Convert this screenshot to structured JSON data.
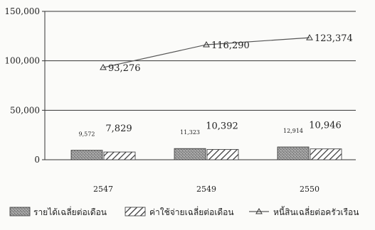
{
  "chart_data": {
    "type": "bar",
    "categories": [
      "2547",
      "2549",
      "2550"
    ],
    "ylim": [
      0,
      150000
    ],
    "yticks": [
      "0",
      "50,000",
      "100,000",
      "150,000"
    ],
    "ytick_values": [
      0,
      50000,
      100000,
      150000
    ],
    "grid": true,
    "legend_position": "bottom",
    "series": [
      {
        "name": "รายได้เฉลี่ยต่อเดือน",
        "kind": "bar",
        "pattern": "stipple",
        "color": "#8a8a8a",
        "values": [
          9572,
          11323,
          12914
        ],
        "labels": [
          "9,572",
          "11,323",
          "12,914"
        ]
      },
      {
        "name": "ค่าใช้จ่ายเฉลี่ยต่อเดือน",
        "kind": "bar",
        "pattern": "diagonal-hatch",
        "color": "#444444",
        "values": [
          7829,
          10392,
          10946
        ],
        "labels": [
          "7,829",
          "10,392",
          "10,946"
        ]
      },
      {
        "name": "หนี้สินเฉลี่ยต่อครัวเรือน",
        "kind": "line",
        "marker": "triangle",
        "color": "#555555",
        "values": [
          93276,
          116290,
          123374
        ],
        "labels": [
          "93,276",
          "116,290",
          "123,374"
        ]
      }
    ]
  }
}
